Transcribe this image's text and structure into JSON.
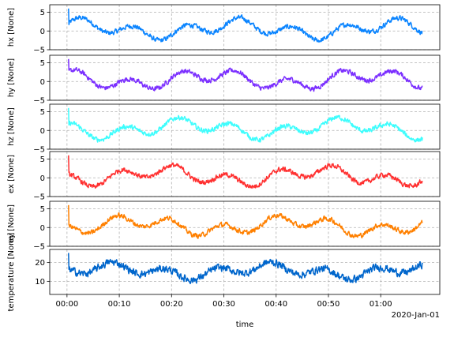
{
  "chart_data": {
    "type": "line",
    "xlabel": "time",
    "x_offset_label": "2020-Jan-01",
    "x_range_minutes": [
      0,
      68
    ],
    "x_ticks": [
      {
        "value": 0,
        "label": "00:00"
      },
      {
        "value": 10,
        "label": "00:10"
      },
      {
        "value": 20,
        "label": "00:20"
      },
      {
        "value": 30,
        "label": "00:30"
      },
      {
        "value": 40,
        "label": "00:40"
      },
      {
        "value": 50,
        "label": "00:50"
      },
      {
        "value": 60,
        "label": "01:00"
      }
    ],
    "grid": true,
    "panels": [
      {
        "ylabel": "hx [None]",
        "color": "#0a84ff",
        "ylim": [
          -5,
          7
        ],
        "yticks": [
          -5,
          0,
          5
        ],
        "mean": 0.5,
        "amplitude": 1.6,
        "noise": 1.0,
        "min": -4.5,
        "max": 6.3
      },
      {
        "ylabel": "hy [None]",
        "color": "#7b2fff",
        "ylim": [
          -5,
          7
        ],
        "yticks": [
          -5,
          0,
          5
        ],
        "mean": 0.5,
        "amplitude": 1.6,
        "noise": 1.0,
        "min": -4.5,
        "max": 6.3
      },
      {
        "ylabel": "hz [None]",
        "color": "#3dfdfd",
        "ylim": [
          -5,
          7
        ],
        "yticks": [
          -5,
          0,
          5
        ],
        "mean": 0.5,
        "amplitude": 1.6,
        "noise": 1.0,
        "min": -4.5,
        "max": 6.3
      },
      {
        "ylabel": "ex [None]",
        "color": "#ff3030",
        "ylim": [
          -5,
          7
        ],
        "yticks": [
          -5,
          0,
          5
        ],
        "mean": 0.5,
        "amplitude": 1.6,
        "noise": 1.0,
        "min": -4.5,
        "max": 6.3
      },
      {
        "ylabel": "ey [None]",
        "color": "#ff8000",
        "ylim": [
          -5,
          7
        ],
        "yticks": [
          -5,
          0,
          5
        ],
        "mean": 0.5,
        "amplitude": 1.6,
        "noise": 1.0,
        "min": -4.5,
        "max": 6.3
      },
      {
        "ylabel": "temperature [None]",
        "color": "#0066cc",
        "ylim": [
          3,
          27
        ],
        "yticks": [
          10,
          20
        ],
        "mean": 15.5,
        "amplitude": 2.5,
        "noise": 3.0,
        "min": 5.0,
        "max": 26.0
      }
    ]
  }
}
